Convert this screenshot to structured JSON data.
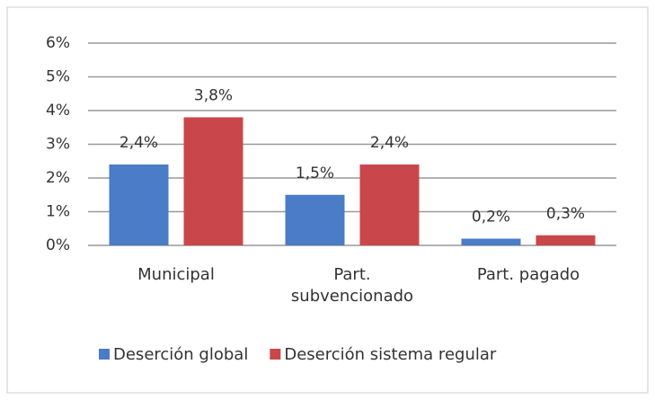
{
  "chart_data": {
    "type": "bar",
    "categories": [
      "Municipal",
      "Part. subvencionado",
      "Part. pagado"
    ],
    "series": [
      {
        "name": "Deserción global",
        "color": "#4a7cc7",
        "values": [
          2.4,
          1.5,
          0.2
        ],
        "value_labels": [
          "2,4%",
          "1,5%",
          "0,2%"
        ]
      },
      {
        "name": "Deserción sistema regular",
        "color": "#c9474a",
        "values": [
          3.8,
          2.4,
          0.3
        ],
        "value_labels": [
          "3,8%",
          "2,4%",
          "0,3%"
        ]
      }
    ],
    "ylim": [
      0,
      6
    ],
    "yticks": [
      {
        "value": 0,
        "label": "0%"
      },
      {
        "value": 1,
        "label": "1%"
      },
      {
        "value": 2,
        "label": "2%"
      },
      {
        "value": 3,
        "label": "3%"
      },
      {
        "value": 4,
        "label": "4%"
      },
      {
        "value": 5,
        "label": "5%"
      },
      {
        "value": 6,
        "label": "6%"
      }
    ],
    "grid": true,
    "legend": "bottom"
  }
}
